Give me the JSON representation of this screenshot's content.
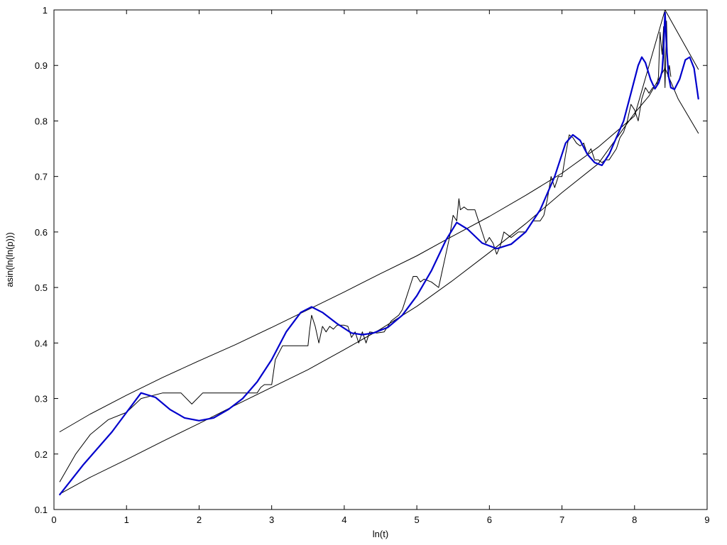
{
  "chart_data": {
    "type": "line",
    "xlabel": "ln(t)",
    "ylabel": "asin(ln(ln(p)))",
    "xlim": [
      0,
      9
    ],
    "ylim": [
      0.1,
      1
    ],
    "xticks": [
      "0",
      "1",
      "2",
      "3",
      "4",
      "5",
      "6",
      "7",
      "8",
      "9"
    ],
    "yticks": [
      "0.1",
      "0.2",
      "0.3",
      "0.4",
      "0.5",
      "0.6",
      "0.7",
      "0.8",
      "0.9",
      "1"
    ],
    "grid": false,
    "series": [
      {
        "color": "#000000",
        "width": 1,
        "x": [
          0.08,
          0.5,
          1.0,
          1.5,
          2.0,
          2.5,
          3.0,
          3.5,
          4.0,
          4.5,
          5.0,
          5.5,
          6.0,
          6.5,
          7.0,
          7.5,
          8.0,
          8.42
        ],
        "y": [
          0.24,
          0.272,
          0.306,
          0.338,
          0.368,
          0.397,
          0.428,
          0.46,
          0.492,
          0.525,
          0.557,
          0.593,
          0.628,
          0.666,
          0.706,
          0.753,
          0.809,
          1.0
        ]
      },
      {
        "color": "#000000",
        "width": 1,
        "x": [
          8.42,
          8.6,
          8.88
        ],
        "y": [
          1.0,
          0.958,
          0.893
        ]
      },
      {
        "color": "#000000",
        "width": 1,
        "x": [
          0.08,
          0.5,
          1.0,
          1.5,
          2.0,
          2.5,
          3.0,
          3.5,
          4.0,
          4.5,
          5.0,
          5.5,
          6.0,
          6.5,
          7.0,
          7.5,
          8.0,
          8.2,
          8.42
        ],
        "y": [
          0.128,
          0.158,
          0.19,
          0.223,
          0.255,
          0.288,
          0.32,
          0.352,
          0.388,
          0.425,
          0.466,
          0.513,
          0.563,
          0.615,
          0.671,
          0.723,
          0.814,
          0.845,
          0.895
        ]
      },
      {
        "color": "#000000",
        "width": 1,
        "x": [
          8.42,
          8.6,
          8.88
        ],
        "y": [
          0.895,
          0.84,
          0.778
        ]
      },
      {
        "color": "#000000",
        "width": 1,
        "x": [
          0.08,
          0.3,
          0.5,
          0.75,
          1.0,
          1.2,
          1.5,
          1.75,
          1.9,
          2.05,
          2.5,
          2.8,
          2.85,
          2.9,
          3.0,
          3.05,
          3.15,
          3.5,
          3.52,
          3.55,
          3.6,
          3.65,
          3.7,
          3.75,
          3.8,
          3.85,
          3.9,
          4.0,
          4.05,
          4.1,
          4.15,
          4.2,
          4.25,
          4.3,
          4.35,
          4.45,
          4.55,
          4.6,
          4.65,
          4.7,
          4.75,
          4.8,
          4.85,
          4.9,
          4.95,
          5.0,
          5.05,
          5.1,
          5.2,
          5.3,
          5.35,
          5.4,
          5.45,
          5.5,
          5.55,
          5.58,
          5.6,
          5.65,
          5.7,
          5.8,
          5.85,
          5.9,
          5.95,
          6.0,
          6.05,
          6.1,
          6.15,
          6.2,
          6.25,
          6.3,
          6.4,
          6.5,
          6.6,
          6.7,
          6.75,
          6.8,
          6.85,
          6.9,
          6.95,
          7.0,
          7.05,
          7.1,
          7.15,
          7.2,
          7.25,
          7.3,
          7.35,
          7.4,
          7.45,
          7.5,
          7.55,
          7.6,
          7.65,
          7.7,
          7.75,
          7.8,
          7.85,
          7.9,
          7.95,
          8.0,
          8.05,
          8.1,
          8.15,
          8.2,
          8.25,
          8.3,
          8.33,
          8.35,
          8.38,
          8.4,
          8.42,
          8.44,
          8.46,
          8.48,
          8.5
        ],
        "y": [
          0.15,
          0.2,
          0.235,
          0.262,
          0.275,
          0.3,
          0.31,
          0.31,
          0.29,
          0.31,
          0.31,
          0.31,
          0.32,
          0.325,
          0.325,
          0.37,
          0.395,
          0.395,
          0.42,
          0.45,
          0.43,
          0.4,
          0.43,
          0.42,
          0.43,
          0.425,
          0.432,
          0.432,
          0.43,
          0.41,
          0.42,
          0.4,
          0.42,
          0.4,
          0.42,
          0.418,
          0.42,
          0.43,
          0.44,
          0.445,
          0.45,
          0.46,
          0.48,
          0.5,
          0.52,
          0.52,
          0.51,
          0.515,
          0.51,
          0.5,
          0.53,
          0.56,
          0.59,
          0.63,
          0.62,
          0.66,
          0.64,
          0.645,
          0.64,
          0.64,
          0.62,
          0.6,
          0.58,
          0.59,
          0.58,
          0.56,
          0.575,
          0.6,
          0.595,
          0.59,
          0.6,
          0.6,
          0.62,
          0.62,
          0.63,
          0.66,
          0.7,
          0.68,
          0.7,
          0.7,
          0.74,
          0.775,
          0.77,
          0.76,
          0.755,
          0.76,
          0.74,
          0.75,
          0.73,
          0.73,
          0.725,
          0.73,
          0.73,
          0.74,
          0.75,
          0.77,
          0.78,
          0.8,
          0.83,
          0.82,
          0.8,
          0.84,
          0.86,
          0.85,
          0.86,
          0.86,
          0.88,
          0.96,
          0.92,
          0.97,
          0.86,
          0.98,
          0.88,
          0.9,
          0.88
        ]
      },
      {
        "color": "#0000cc",
        "width": 2.2,
        "x": [
          0.08,
          0.4,
          0.8,
          1.0,
          1.2,
          1.4,
          1.6,
          1.8,
          2.0,
          2.2,
          2.4,
          2.6,
          2.8,
          3.0,
          3.2,
          3.4,
          3.55,
          3.7,
          3.9,
          4.1,
          4.25,
          4.4,
          4.6,
          4.8,
          5.0,
          5.2,
          5.4,
          5.55,
          5.7,
          5.9,
          6.1,
          6.3,
          6.5,
          6.7,
          6.9,
          7.05,
          7.15,
          7.25,
          7.35,
          7.45,
          7.55,
          7.65,
          7.75,
          7.85,
          7.95,
          8.05,
          8.1,
          8.15,
          8.22,
          8.28,
          8.33,
          8.36,
          8.38,
          8.4,
          8.42,
          8.44,
          8.47,
          8.5,
          8.55,
          8.62,
          8.7,
          8.76,
          8.82,
          8.88
        ],
        "y": [
          0.127,
          0.18,
          0.24,
          0.275,
          0.31,
          0.302,
          0.28,
          0.265,
          0.26,
          0.265,
          0.28,
          0.3,
          0.33,
          0.37,
          0.42,
          0.455,
          0.465,
          0.455,
          0.435,
          0.418,
          0.415,
          0.418,
          0.428,
          0.45,
          0.485,
          0.53,
          0.585,
          0.617,
          0.605,
          0.58,
          0.57,
          0.578,
          0.6,
          0.64,
          0.7,
          0.76,
          0.775,
          0.765,
          0.74,
          0.725,
          0.72,
          0.74,
          0.77,
          0.8,
          0.85,
          0.9,
          0.915,
          0.905,
          0.875,
          0.858,
          0.868,
          0.88,
          0.89,
          0.93,
          0.995,
          0.935,
          0.88,
          0.86,
          0.857,
          0.875,
          0.91,
          0.915,
          0.895,
          0.84
        ]
      }
    ]
  }
}
